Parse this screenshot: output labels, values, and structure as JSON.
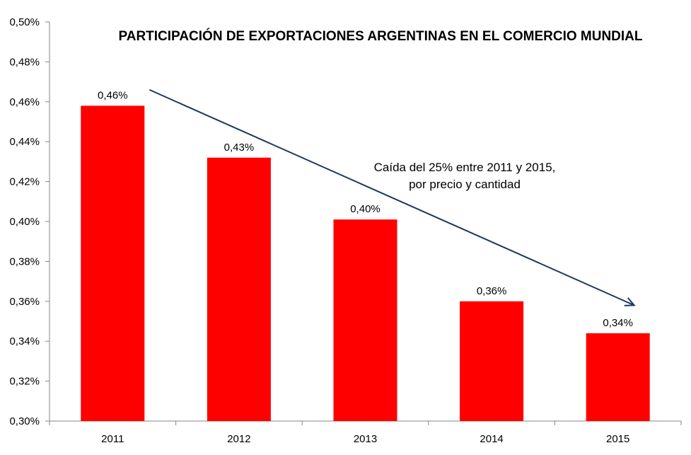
{
  "chart_data": {
    "type": "bar",
    "title": "PARTICIPACIÓN DE EXPORTACIONES ARGENTINAS EN EL COMERCIO MUNDIAL",
    "xlabel": "",
    "ylabel": "",
    "categories": [
      "2011",
      "2012",
      "2013",
      "2014",
      "2015"
    ],
    "values": [
      0.458,
      0.432,
      0.401,
      0.36,
      0.344
    ],
    "data_labels": [
      "0,46%",
      "0,43%",
      "0,40%",
      "0,36%",
      "0,34%"
    ],
    "ylim": [
      0.3,
      0.5
    ],
    "y_ticks": [
      0.3,
      0.32,
      0.34,
      0.36,
      0.38,
      0.4,
      0.42,
      0.44,
      0.46,
      0.48,
      0.5
    ],
    "y_tick_labels": [
      "0,30%",
      "0,32%",
      "0,34%",
      "0,36%",
      "0,38%",
      "0,40%",
      "0,42%",
      "0,44%",
      "0,46%",
      "0,48%",
      "0,50%"
    ],
    "grid": false,
    "legend": "none",
    "annotation": {
      "lines": [
        "Caída del 25% entre 2011 y 2015,",
        "por precio y cantidad"
      ],
      "arrow_from": {
        "category": "2011",
        "value": 0.466
      },
      "arrow_to": {
        "category": "2015",
        "value": 0.358
      }
    }
  },
  "colors": {
    "bar": "#ff0000",
    "arrow": "#1f3a5f",
    "axis": "#868686",
    "text": "#000000",
    "background": "#ffffff"
  }
}
